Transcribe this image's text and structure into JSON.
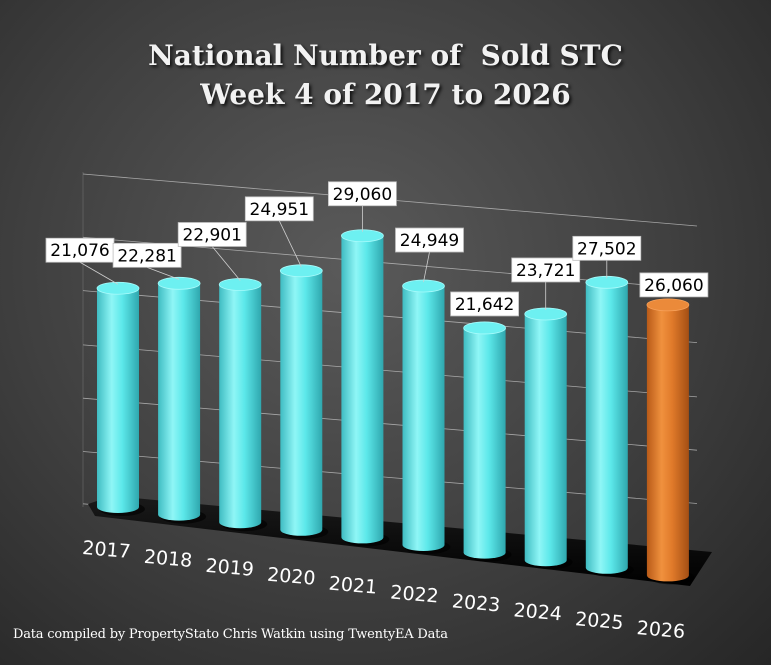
{
  "chart_data": {
    "type": "bar",
    "title_lines": [
      "National Number of  Sold STC",
      "Week 4 of 2017 to 2026"
    ],
    "categories": [
      "2017",
      "2018",
      "2019",
      "2020",
      "2021",
      "2022",
      "2023",
      "2024",
      "2025",
      "2026"
    ],
    "values": [
      21076,
      22281,
      22901,
      24951,
      29060,
      24949,
      21642,
      23721,
      27502,
      26060
    ],
    "value_labels": [
      "21,076",
      "22,281",
      "22,901",
      "24,951",
      "29,060",
      "24,949",
      "21,642",
      "23,721",
      "27,502",
      "26,060"
    ],
    "colors": {
      "default": "#5ce8ea",
      "highlight": "#e07a2a",
      "highlight_category": "2026"
    },
    "grid": true,
    "style": "3d-cylinder"
  },
  "footnote": "Data compiled by PropertyStato Chris Watkin using TwentyEA Data"
}
